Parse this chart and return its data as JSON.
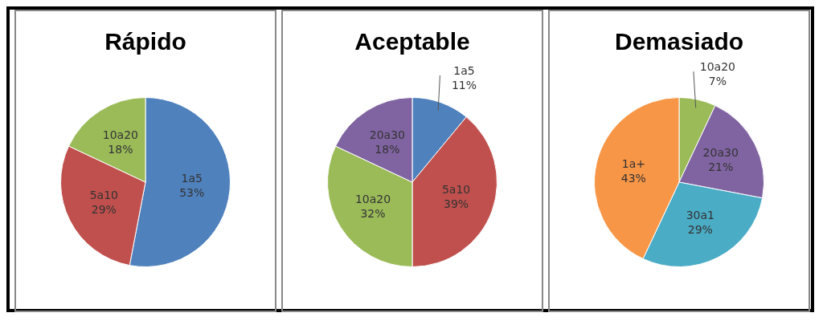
{
  "chart_data": [
    {
      "type": "pie",
      "title": "Rápido",
      "categories": [
        "1a5",
        "5a10",
        "10a20"
      ],
      "values": [
        53,
        29,
        18
      ],
      "value_labels": [
        "53%",
        "29%",
        "18%"
      ],
      "colors": [
        "#4f81bd",
        "#c0504d",
        "#9bbb59"
      ],
      "legend": false
    },
    {
      "type": "pie",
      "title": "Aceptable",
      "categories": [
        "1a5",
        "5a10",
        "10a20",
        "20a30"
      ],
      "values": [
        11,
        39,
        32,
        18
      ],
      "value_labels": [
        "11%",
        "39%",
        "32%",
        "18%"
      ],
      "colors": [
        "#4f81bd",
        "#c0504d",
        "#9bbb59",
        "#8064a2"
      ],
      "legend": false
    },
    {
      "type": "pie",
      "title": "Demasiado",
      "categories": [
        "10a20",
        "20a30",
        "30a1",
        "1a+"
      ],
      "values": [
        7,
        21,
        29,
        43
      ],
      "value_labels": [
        "7%",
        "21%",
        "29%",
        "43%"
      ],
      "colors": [
        "#9bbb59",
        "#8064a2",
        "#4bacc6",
        "#f79646"
      ],
      "legend": false
    }
  ]
}
